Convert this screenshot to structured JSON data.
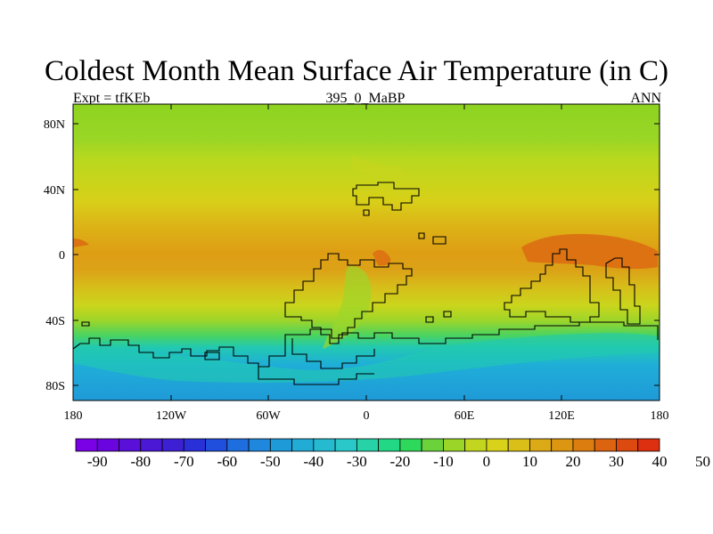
{
  "header": {
    "title": "Coldest Month Mean Surface Air Temperature (in C)",
    "left_label": "Expt = tfKEb",
    "center_label": "395_0_MaBP",
    "right_label": "ANN"
  },
  "map": {
    "lat_labels": [
      "80N",
      "40N",
      "0",
      "40S",
      "80S"
    ],
    "lon_labels": [
      "180",
      "120W",
      "60W",
      "0",
      "60E",
      "120E",
      "180"
    ]
  },
  "colorbar": {
    "labels": [
      "-90",
      "-80",
      "-70",
      "-60",
      "-50",
      "-40",
      "-30",
      "-20",
      "-10",
      "0",
      "10",
      "20",
      "30",
      "40",
      "50"
    ],
    "colors": [
      "#7a00e6",
      "#6a05e0",
      "#5a10d8",
      "#4b18d6",
      "#3d20d4",
      "#2a30d8",
      "#1f4fdc",
      "#1f6ee0",
      "#1f87dd",
      "#1f9ad8",
      "#22abd5",
      "#25bad0",
      "#2ac8c8",
      "#27d2a8",
      "#22d885",
      "#2ed85a",
      "#6cd23c",
      "#9bd527",
      "#c2d61f",
      "#d8d21a",
      "#d9bf18",
      "#dcaa17",
      "#dc9612",
      "#dc7d0f",
      "#dc6310",
      "#dc4a10",
      "#dc3010"
    ]
  }
}
